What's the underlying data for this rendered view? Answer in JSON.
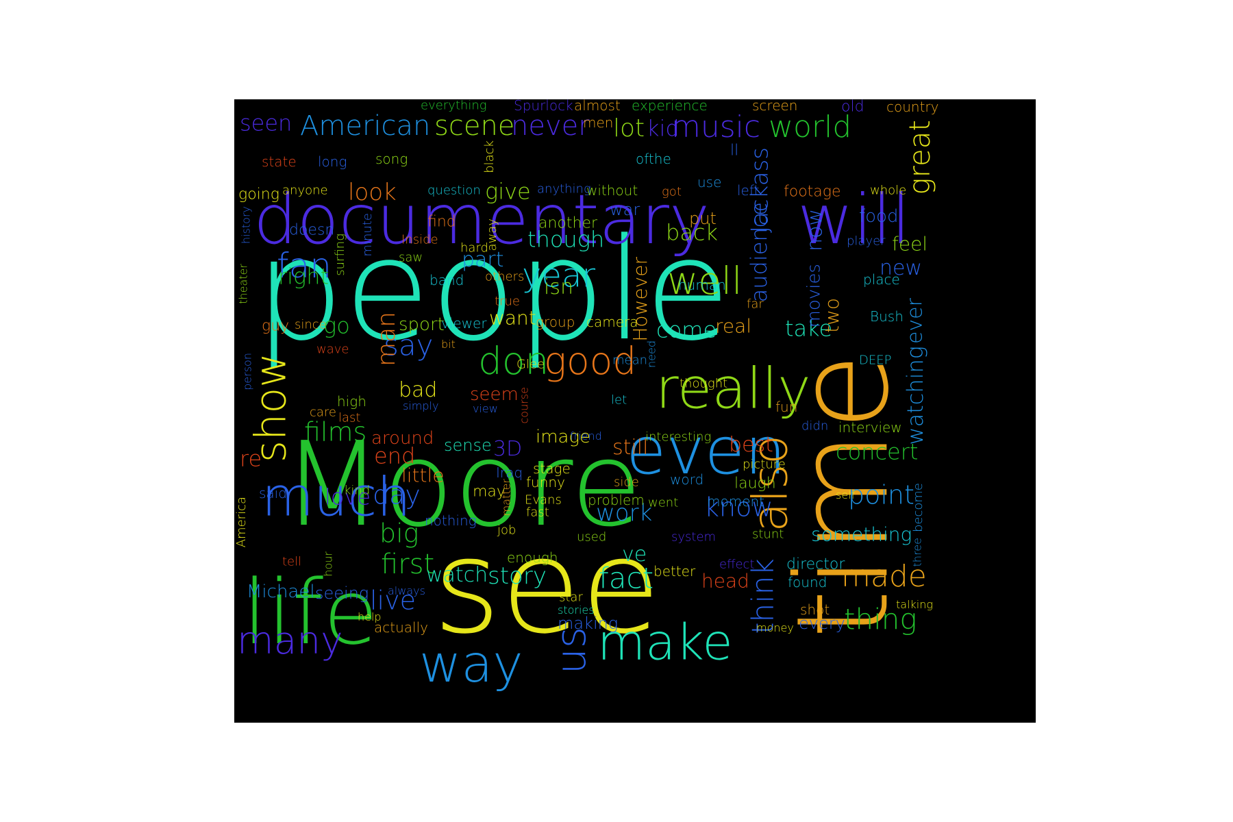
{
  "background": "#000000",
  "colors": {
    "teal": "#1fe3b8",
    "blue": "#2a62e6",
    "violet": "#4b2be0",
    "azure": "#1e90e0",
    "green": "#24c22e",
    "lime": "#8fd817",
    "yellow": "#e6e61a",
    "amber": "#e8a21a",
    "orange": "#e8761a",
    "red": "#e0441a",
    "cyan": "#18c7d6"
  },
  "words": [
    {
      "text": "people",
      "color": "teal"
    },
    {
      "text": "documentary",
      "color": "violet"
    },
    {
      "text": "will",
      "color": "violet"
    },
    {
      "text": "Moore",
      "color": "green"
    },
    {
      "text": "see",
      "color": "yellow"
    },
    {
      "text": "time",
      "color": "amber"
    },
    {
      "text": "life",
      "color": "green"
    },
    {
      "text": "even",
      "color": "azure"
    },
    {
      "text": "really",
      "color": "lime"
    },
    {
      "text": "much",
      "color": "blue"
    },
    {
      "text": "make",
      "color": "teal"
    },
    {
      "text": "way",
      "color": "azure"
    },
    {
      "text": "many",
      "color": "violet"
    },
    {
      "text": "well",
      "color": "lime"
    },
    {
      "text": "good",
      "color": "orange"
    },
    {
      "text": "don",
      "color": "green"
    },
    {
      "text": "fan",
      "color": "blue"
    },
    {
      "text": "year",
      "color": "cyan"
    },
    {
      "text": "American",
      "color": "azure"
    },
    {
      "text": "scene",
      "color": "lime"
    },
    {
      "text": "never",
      "color": "violet"
    },
    {
      "text": "music",
      "color": "violet"
    },
    {
      "text": "world",
      "color": "green"
    },
    {
      "text": "also",
      "color": "amber"
    },
    {
      "text": "show",
      "color": "yellow"
    },
    {
      "text": "us",
      "color": "blue"
    },
    {
      "text": "fact",
      "color": "teal"
    },
    {
      "text": "made",
      "color": "amber"
    },
    {
      "text": "thing",
      "color": "green"
    },
    {
      "text": "great",
      "color": "yellow"
    },
    {
      "text": "Jackass",
      "color": "blue"
    },
    {
      "text": "audience",
      "color": "blue"
    },
    {
      "text": "think",
      "color": "blue"
    },
    {
      "text": "watching",
      "color": "azure"
    },
    {
      "text": "ever",
      "color": "azure"
    },
    {
      "text": "seen",
      "color": "violet"
    },
    {
      "text": "lot",
      "color": "lime"
    },
    {
      "text": "kid",
      "color": "violet"
    },
    {
      "text": "look",
      "color": "orange"
    },
    {
      "text": "give",
      "color": "lime"
    },
    {
      "text": "right",
      "color": "green"
    },
    {
      "text": "back",
      "color": "lime"
    },
    {
      "text": "part",
      "color": "azure"
    },
    {
      "text": "isn",
      "color": "lime"
    },
    {
      "text": "another",
      "color": "lime"
    },
    {
      "text": "though",
      "color": "teal"
    },
    {
      "text": "put",
      "color": "amber"
    },
    {
      "text": "doesn",
      "color": "blue"
    },
    {
      "text": "go",
      "color": "green"
    },
    {
      "text": "say",
      "color": "blue"
    },
    {
      "text": "man",
      "color": "orange"
    },
    {
      "text": "sport",
      "color": "lime"
    },
    {
      "text": "want",
      "color": "yellow"
    },
    {
      "text": "come",
      "color": "teal"
    },
    {
      "text": "real",
      "color": "amber"
    },
    {
      "text": "take",
      "color": "teal"
    },
    {
      "text": "two",
      "color": "amber"
    },
    {
      "text": "However",
      "color": "amber"
    },
    {
      "text": "now",
      "color": "blue"
    },
    {
      "text": "movies",
      "color": "blue"
    },
    {
      "text": "films",
      "color": "green"
    },
    {
      "text": "bad",
      "color": "yellow"
    },
    {
      "text": "seem",
      "color": "red"
    },
    {
      "text": "end",
      "color": "red"
    },
    {
      "text": "around",
      "color": "red"
    },
    {
      "text": "3D",
      "color": "violet"
    },
    {
      "text": "sense",
      "color": "teal"
    },
    {
      "text": "image",
      "color": "yellow"
    },
    {
      "text": "still",
      "color": "orange"
    },
    {
      "text": "best",
      "color": "red"
    },
    {
      "text": "concert",
      "color": "green"
    },
    {
      "text": "re",
      "color": "red"
    },
    {
      "text": "love",
      "color": "violet"
    },
    {
      "text": "day",
      "color": "blue"
    },
    {
      "text": "little",
      "color": "orange"
    },
    {
      "text": "work",
      "color": "azure"
    },
    {
      "text": "know",
      "color": "blue"
    },
    {
      "text": "point",
      "color": "azure"
    },
    {
      "text": "something",
      "color": "cyan"
    },
    {
      "text": "big",
      "color": "green"
    },
    {
      "text": "first",
      "color": "green"
    },
    {
      "text": "watch",
      "color": "teal"
    },
    {
      "text": "story",
      "color": "teal"
    },
    {
      "text": "live",
      "color": "blue"
    },
    {
      "text": "head",
      "color": "red"
    },
    {
      "text": "Michael",
      "color": "azure"
    },
    {
      "text": "seeing",
      "color": "blue"
    },
    {
      "text": "ve",
      "color": "teal"
    },
    {
      "text": "new",
      "color": "blue"
    },
    {
      "text": "feel",
      "color": "lime"
    },
    {
      "text": "food",
      "color": "blue"
    },
    {
      "text": "place",
      "color": "cyan"
    },
    {
      "text": "Bush",
      "color": "cyan"
    },
    {
      "text": "everything",
      "color": "green"
    },
    {
      "text": "Spurlock",
      "color": "violet"
    },
    {
      "text": "almost",
      "color": "amber"
    },
    {
      "text": "experience",
      "color": "green"
    },
    {
      "text": "screen",
      "color": "amber"
    },
    {
      "text": "old",
      "color": "violet"
    },
    {
      "text": "country",
      "color": "amber"
    },
    {
      "text": "men",
      "color": "amber"
    },
    {
      "text": "state",
      "color": "red"
    },
    {
      "text": "long",
      "color": "blue"
    },
    {
      "text": "song",
      "color": "lime"
    },
    {
      "text": "black",
      "color": "yellow"
    },
    {
      "text": "ofthe",
      "color": "cyan"
    },
    {
      "text": "ll",
      "color": "blue"
    },
    {
      "text": "going",
      "color": "yellow"
    },
    {
      "text": "anyone",
      "color": "yellow"
    },
    {
      "text": "question",
      "color": "cyan"
    },
    {
      "text": "anything",
      "color": "blue"
    },
    {
      "text": "without",
      "color": "lime"
    },
    {
      "text": "got",
      "color": "orange"
    },
    {
      "text": "use",
      "color": "azure"
    },
    {
      "text": "left",
      "color": "blue"
    },
    {
      "text": "footage",
      "color": "orange"
    },
    {
      "text": "whole",
      "color": "yellow"
    },
    {
      "text": "war",
      "color": "blue"
    },
    {
      "text": "history",
      "color": "blue"
    },
    {
      "text": "surfing",
      "color": "lime"
    },
    {
      "text": "minute",
      "color": "blue"
    },
    {
      "text": "find",
      "color": "orange"
    },
    {
      "text": "Inside",
      "color": "orange"
    },
    {
      "text": "saw",
      "color": "lime"
    },
    {
      "text": "hard",
      "color": "yellow"
    },
    {
      "text": "away",
      "color": "yellow"
    },
    {
      "text": "band",
      "color": "cyan"
    },
    {
      "text": "others",
      "color": "amber"
    },
    {
      "text": "player",
      "color": "blue"
    },
    {
      "text": "theater",
      "color": "lime"
    },
    {
      "text": "true",
      "color": "orange"
    },
    {
      "text": "human",
      "color": "cyan"
    },
    {
      "text": "far",
      "color": "amber"
    },
    {
      "text": "guy",
      "color": "orange"
    },
    {
      "text": "since",
      "color": "amber"
    },
    {
      "text": "viewer",
      "color": "cyan"
    },
    {
      "text": "group",
      "color": "amber"
    },
    {
      "text": "camera",
      "color": "yellow"
    },
    {
      "text": "wave",
      "color": "red"
    },
    {
      "text": "bit",
      "color": "amber"
    },
    {
      "text": "Glee",
      "color": "yellow"
    },
    {
      "text": "mean",
      "color": "azure"
    },
    {
      "text": "need",
      "color": "azure"
    },
    {
      "text": "DEEP",
      "color": "cyan"
    },
    {
      "text": "person",
      "color": "blue"
    },
    {
      "text": "thought",
      "color": "yellow"
    },
    {
      "text": "high",
      "color": "lime"
    },
    {
      "text": "care",
      "color": "amber"
    },
    {
      "text": "last",
      "color": "orange"
    },
    {
      "text": "simply",
      "color": "blue"
    },
    {
      "text": "view",
      "color": "blue"
    },
    {
      "text": "course",
      "color": "red"
    },
    {
      "text": "let",
      "color": "cyan"
    },
    {
      "text": "fun",
      "color": "amber"
    },
    {
      "text": "didn",
      "color": "blue"
    },
    {
      "text": "interview",
      "color": "lime"
    },
    {
      "text": "friend",
      "color": "blue"
    },
    {
      "text": "interesting",
      "color": "lime"
    },
    {
      "text": "Iraq",
      "color": "blue"
    },
    {
      "text": "stage",
      "color": "yellow"
    },
    {
      "text": "funny",
      "color": "yellow"
    },
    {
      "text": "picture",
      "color": "yellow"
    },
    {
      "text": "laugh",
      "color": "lime"
    },
    {
      "text": "said",
      "color": "blue"
    },
    {
      "text": "kind",
      "color": "lime"
    },
    {
      "text": "may",
      "color": "yellow"
    },
    {
      "text": "matter",
      "color": "amber"
    },
    {
      "text": "side",
      "color": "amber"
    },
    {
      "text": "word",
      "color": "azure"
    },
    {
      "text": "Evans",
      "color": "yellow"
    },
    {
      "text": "fast",
      "color": "yellow"
    },
    {
      "text": "problem",
      "color": "lime"
    },
    {
      "text": "went",
      "color": "lime"
    },
    {
      "text": "moment",
      "color": "azure"
    },
    {
      "text": "self",
      "color": "yellow"
    },
    {
      "text": "become",
      "color": "azure"
    },
    {
      "text": "America",
      "color": "yellow"
    },
    {
      "text": "nothing",
      "color": "blue"
    },
    {
      "text": "job",
      "color": "yellow"
    },
    {
      "text": "used",
      "color": "lime"
    },
    {
      "text": "system",
      "color": "violet"
    },
    {
      "text": "stunt",
      "color": "lime"
    },
    {
      "text": "three",
      "color": "azure"
    },
    {
      "text": "tell",
      "color": "red"
    },
    {
      "text": "hour",
      "color": "lime"
    },
    {
      "text": "enough",
      "color": "lime"
    },
    {
      "text": "effect",
      "color": "violet"
    },
    {
      "text": "director",
      "color": "cyan"
    },
    {
      "text": "better",
      "color": "yellow"
    },
    {
      "text": "found",
      "color": "cyan"
    },
    {
      "text": "always",
      "color": "blue"
    },
    {
      "text": "star",
      "color": "yellow"
    },
    {
      "text": "stories",
      "color": "teal"
    },
    {
      "text": "shot",
      "color": "amber"
    },
    {
      "text": "talking",
      "color": "yellow"
    },
    {
      "text": "help",
      "color": "yellow"
    },
    {
      "text": "actually",
      "color": "amber"
    },
    {
      "text": "making",
      "color": "blue"
    },
    {
      "text": "money",
      "color": "yellow"
    },
    {
      "text": "every",
      "color": "blue"
    }
  ]
}
